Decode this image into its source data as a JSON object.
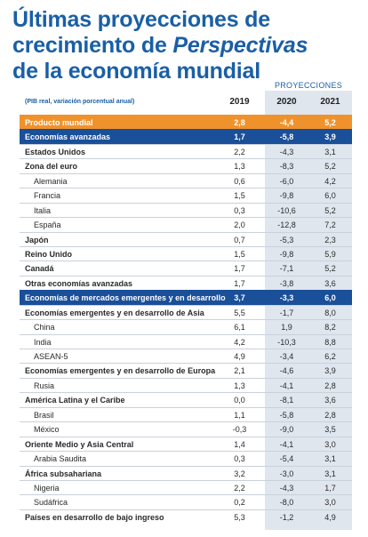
{
  "title": {
    "line1": "Últimas proyecciones de",
    "line2_plain": "crecimiento de ",
    "line2_italic": "Perspectivas",
    "line3": "de la economía mundial"
  },
  "projections_label": "PROYECCIONES",
  "subtitle": "(PIB real, variación porcentual anual)",
  "years": [
    "2019",
    "2020",
    "2021"
  ],
  "rows": [
    {
      "label": "Producto mundial",
      "values": [
        "2,8",
        "-4,4",
        "5,2"
      ],
      "style": "hl-orange"
    },
    {
      "label": "Economías avanzadas",
      "values": [
        "1,7",
        "-5,8",
        "3,9"
      ],
      "style": "hl-blue"
    },
    {
      "label": "Estados Unidos",
      "values": [
        "2,2",
        "-4,3",
        "3,1"
      ],
      "style": "bold"
    },
    {
      "label": "Zona del euro",
      "values": [
        "1,3",
        "-8,3",
        "5,2"
      ],
      "style": "bold"
    },
    {
      "label": "Alemania",
      "values": [
        "0,6",
        "-6,0",
        "4,2"
      ],
      "style": "sub"
    },
    {
      "label": "Francia",
      "values": [
        "1,5",
        "-9,8",
        "6,0"
      ],
      "style": "sub"
    },
    {
      "label": "Italia",
      "values": [
        "0,3",
        "-10,6",
        "5,2"
      ],
      "style": "sub"
    },
    {
      "label": "España",
      "values": [
        "2,0",
        "-12,8",
        "7,2"
      ],
      "style": "sub"
    },
    {
      "label": "Japón",
      "values": [
        "0,7",
        "-5,3",
        "2,3"
      ],
      "style": "bold"
    },
    {
      "label": "Reino Unido",
      "values": [
        "1,5",
        "-9,8",
        "5,9"
      ],
      "style": "bold"
    },
    {
      "label": "Canadá",
      "values": [
        "1,7",
        "-7,1",
        "5,2"
      ],
      "style": "bold"
    },
    {
      "label": "Otras economías avanzadas",
      "values": [
        "1,7",
        "-3,8",
        "3,6"
      ],
      "style": "bold"
    },
    {
      "label": "Economías de mercados emergentes y en desarrollo",
      "values": [
        "3,7",
        "-3,3",
        "6,0"
      ],
      "style": "hl-blue"
    },
    {
      "label": "Economías emergentes y en desarrollo de Asia",
      "values": [
        "5,5",
        "-1,7",
        "8,0"
      ],
      "style": "bold"
    },
    {
      "label": "China",
      "values": [
        "6,1",
        "1,9",
        "8,2"
      ],
      "style": "sub"
    },
    {
      "label": "India",
      "values": [
        "4,2",
        "-10,3",
        "8,8"
      ],
      "style": "sub"
    },
    {
      "label": "ASEAN-5",
      "values": [
        "4,9",
        "-3,4",
        "6,2"
      ],
      "style": "sub"
    },
    {
      "label": "Economías emergentes y en desarrollo de Europa",
      "values": [
        "2,1",
        "-4,6",
        "3,9"
      ],
      "style": "bold"
    },
    {
      "label": "Rusia",
      "values": [
        "1,3",
        "-4,1",
        "2,8"
      ],
      "style": "sub"
    },
    {
      "label": "América Latina y el Caribe",
      "values": [
        "0,0",
        "-8,1",
        "3,6"
      ],
      "style": "bold"
    },
    {
      "label": "Brasil",
      "values": [
        "1,1",
        "-5,8",
        "2,8"
      ],
      "style": "sub"
    },
    {
      "label": "México",
      "values": [
        "-0,3",
        "-9,0",
        "3,5"
      ],
      "style": "sub"
    },
    {
      "label": "Oriente Medio y Asia Central",
      "values": [
        "1,4",
        "-4,1",
        "3,0"
      ],
      "style": "bold"
    },
    {
      "label": "Arabia Saudita",
      "values": [
        "0,3",
        "-5,4",
        "3,1"
      ],
      "style": "sub"
    },
    {
      "label": "África subsahariana",
      "values": [
        "3,2",
        "-3,0",
        "3,1"
      ],
      "style": "bold"
    },
    {
      "label": "Nigeria",
      "values": [
        "2,2",
        "-4,3",
        "1,7"
      ],
      "style": "sub"
    },
    {
      "label": "Sudáfrica",
      "values": [
        "0,2",
        "-8,0",
        "3,0"
      ],
      "style": "sub"
    },
    {
      "label": "Países en desarrollo de bajo ingreso",
      "values": [
        "5,3",
        "-1,2",
        "4,9"
      ],
      "style": "bold"
    }
  ]
}
